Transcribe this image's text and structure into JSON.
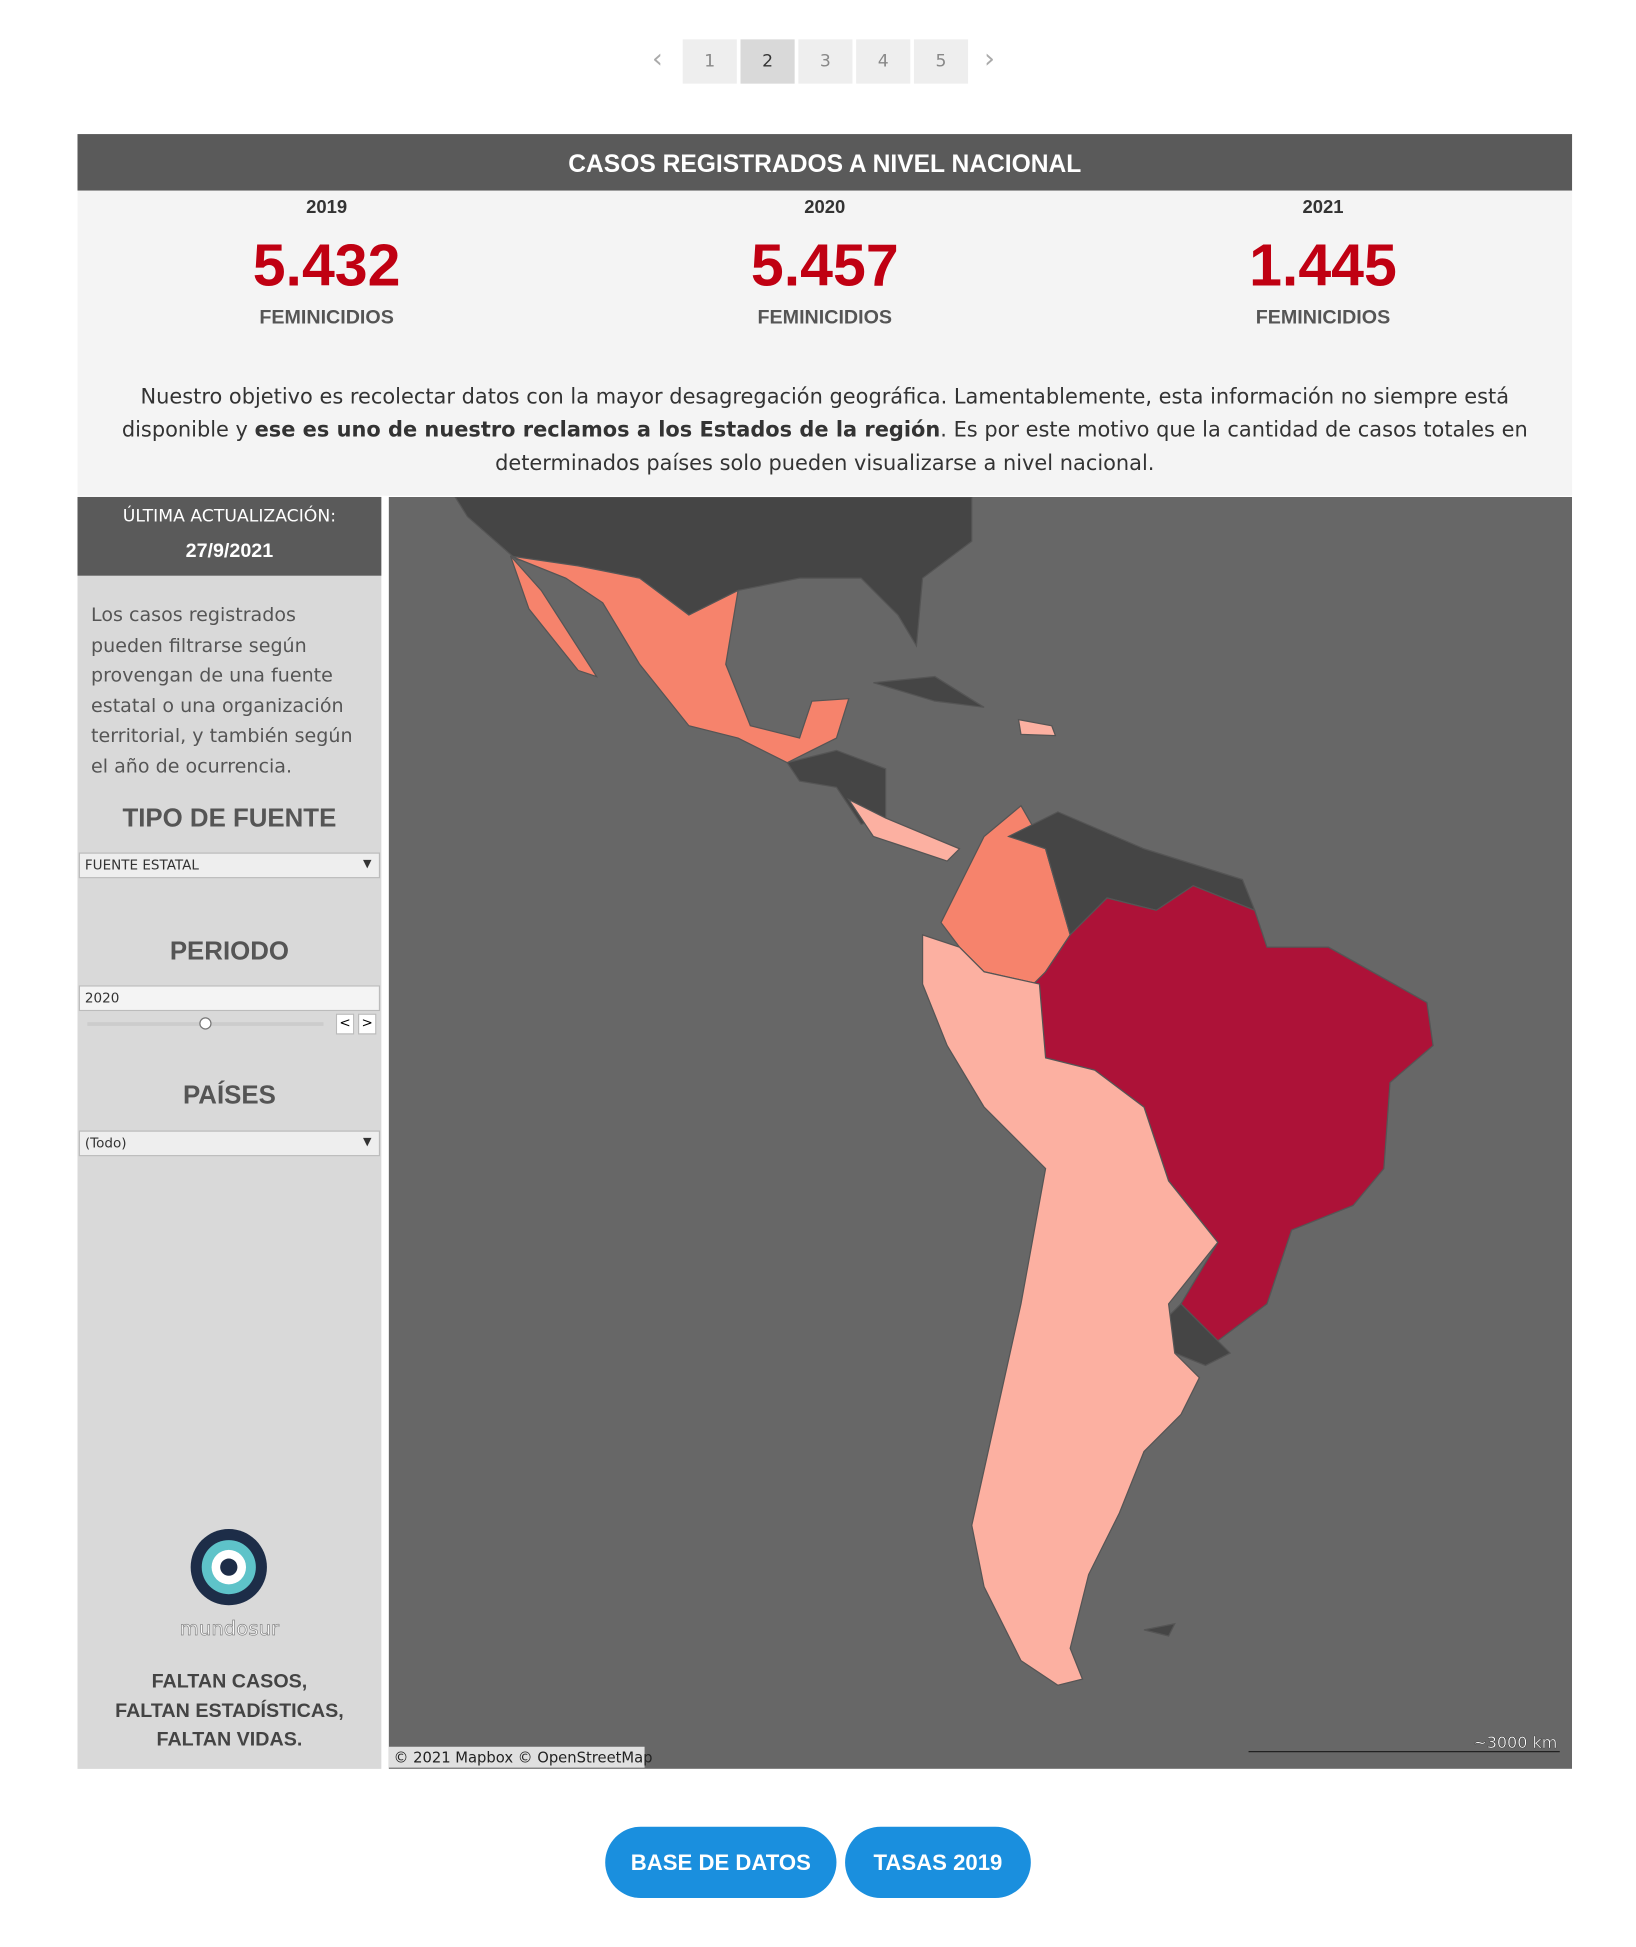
{
  "pagination": {
    "pages": [
      "1",
      "2",
      "3",
      "4",
      "5"
    ],
    "active": 1
  },
  "header": {
    "title": "CASOS REGISTRADOS A NIVEL NACIONAL"
  },
  "stats": [
    {
      "year": "2019",
      "value": "5.432",
      "label": "FEMINICIDIOS"
    },
    {
      "year": "2020",
      "value": "5.457",
      "label": "FEMINICIDIOS"
    },
    {
      "year": "2021",
      "value": "1.445",
      "label": "FEMINICIDIOS"
    }
  ],
  "description": {
    "before": "Nuestro objetivo es recolectar datos con la mayor desagregación geográfica. Lamentablemente, esta información no siempre está disponible y ",
    "bold": "ese es uno de nuestro reclamos a los Estados de la región",
    "after": ". Es por este motivo que la cantidad de casos totales en determinados países solo pueden visualizarse a nivel nacional."
  },
  "sidebar": {
    "update_label": "ÚLTIMA ACTUALIZACIÓN:",
    "update_date": "27/9/2021",
    "text": "Los casos registrados pueden filtrarse según provengan de una fuente estatal o una organización territorial, y también según el año de ocurrencia.",
    "filters": [
      {
        "title": "TIPO DE FUENTE",
        "value": "FUENTE ESTATAL"
      },
      {
        "title": "PERIODO",
        "value": "2020"
      },
      {
        "title": "PAÍSES",
        "value": "(Todo)"
      }
    ],
    "logo": "mundosur",
    "slogan": [
      "FALTAN CASOS,",
      "FALTAN ESTADÍSTICAS,",
      "FALTAN VIDAS."
    ]
  },
  "map": {
    "attribution": "© 2021 Mapbox  © OpenStreetMap",
    "scale": "~3000 km"
  },
  "buttons": [
    "BASE DE DATOS",
    "TASAS 2019"
  ]
}
